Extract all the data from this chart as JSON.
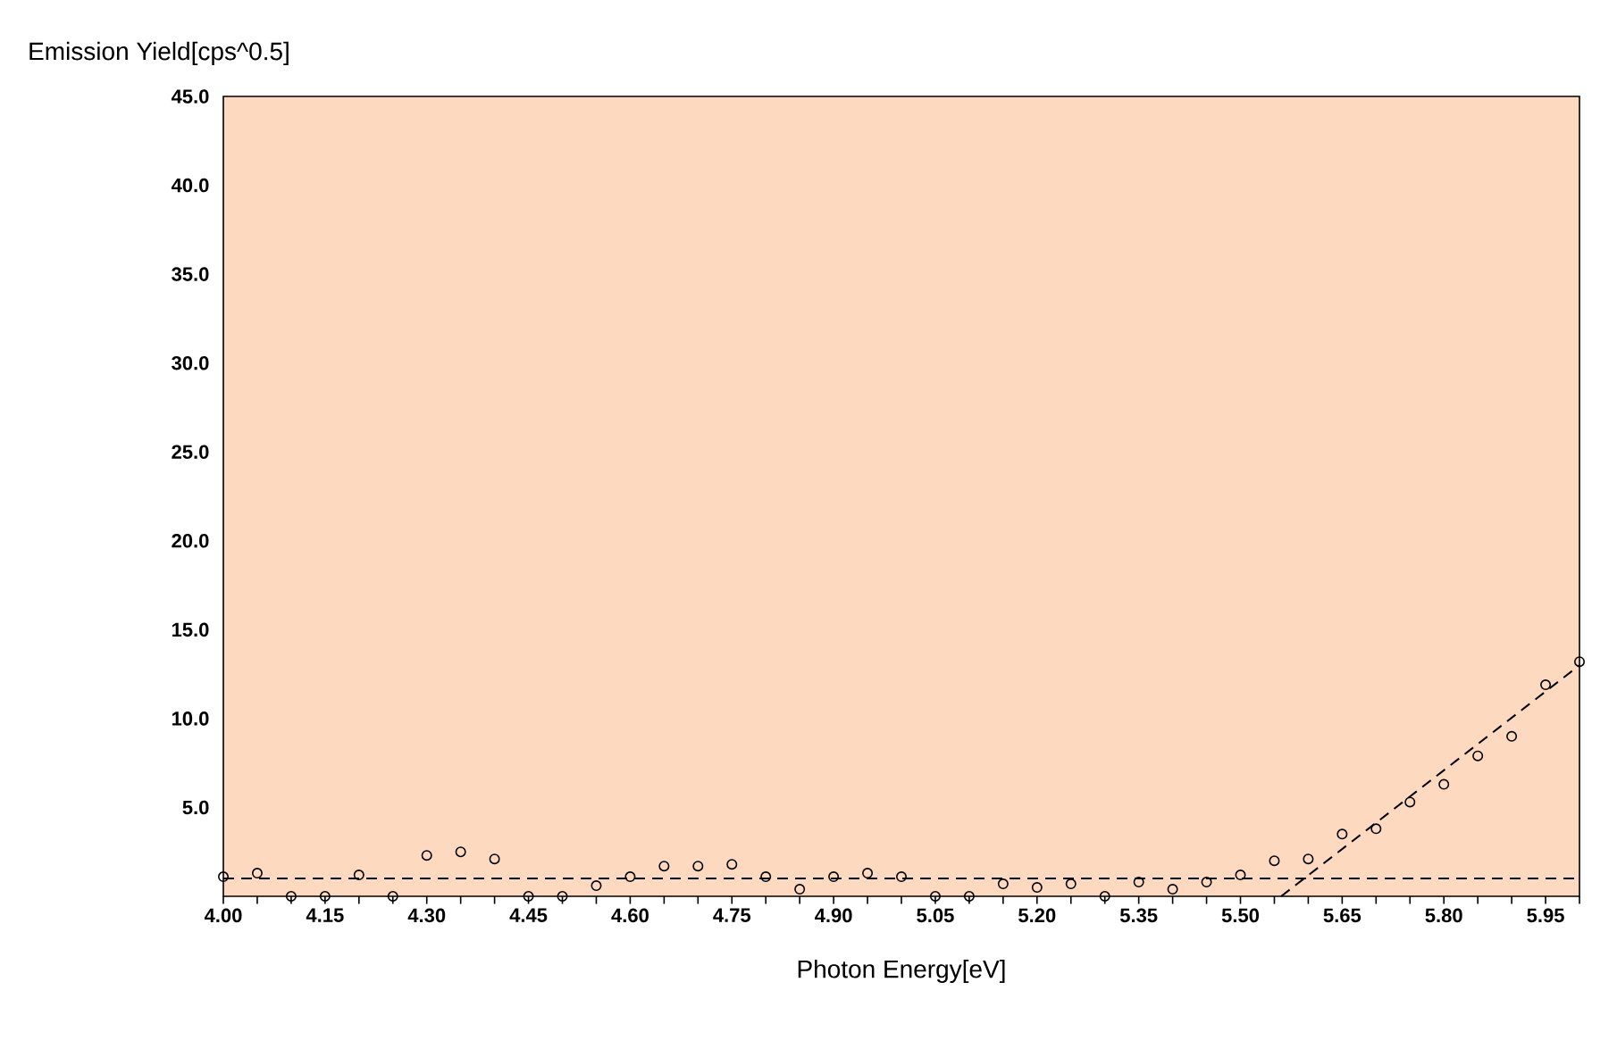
{
  "chart_data": {
    "type": "scatter",
    "xlabel": "Photon Energy[eV]",
    "ylabel": "Emission Yield[cps^0.5]",
    "xlim": [
      4.0,
      6.0
    ],
    "ylim": [
      0,
      45
    ],
    "xticks": [
      {
        "value": 4.0,
        "label": "4.00"
      },
      {
        "value": 4.05,
        "label": null
      },
      {
        "value": 4.1,
        "label": null
      },
      {
        "value": 4.15,
        "label": "4.15"
      },
      {
        "value": 4.2,
        "label": null
      },
      {
        "value": 4.25,
        "label": null
      },
      {
        "value": 4.3,
        "label": "4.30"
      },
      {
        "value": 4.35,
        "label": null
      },
      {
        "value": 4.4,
        "label": null
      },
      {
        "value": 4.45,
        "label": "4.45"
      },
      {
        "value": 4.5,
        "label": null
      },
      {
        "value": 4.55,
        "label": null
      },
      {
        "value": 4.6,
        "label": "4.60"
      },
      {
        "value": 4.65,
        "label": null
      },
      {
        "value": 4.7,
        "label": null
      },
      {
        "value": 4.75,
        "label": "4.75"
      },
      {
        "value": 4.8,
        "label": null
      },
      {
        "value": 4.85,
        "label": null
      },
      {
        "value": 4.9,
        "label": "4.90"
      },
      {
        "value": 4.95,
        "label": null
      },
      {
        "value": 5.0,
        "label": null
      },
      {
        "value": 5.05,
        "label": "5.05"
      },
      {
        "value": 5.1,
        "label": null
      },
      {
        "value": 5.15,
        "label": null
      },
      {
        "value": 5.2,
        "label": "5.20"
      },
      {
        "value": 5.25,
        "label": null
      },
      {
        "value": 5.3,
        "label": null
      },
      {
        "value": 5.35,
        "label": "5.35"
      },
      {
        "value": 5.4,
        "label": null
      },
      {
        "value": 5.45,
        "label": null
      },
      {
        "value": 5.5,
        "label": "5.50"
      },
      {
        "value": 5.55,
        "label": null
      },
      {
        "value": 5.6,
        "label": null
      },
      {
        "value": 5.65,
        "label": "5.65"
      },
      {
        "value": 5.7,
        "label": null
      },
      {
        "value": 5.75,
        "label": null
      },
      {
        "value": 5.8,
        "label": "5.80"
      },
      {
        "value": 5.85,
        "label": null
      },
      {
        "value": 5.9,
        "label": null
      },
      {
        "value": 5.95,
        "label": "5.95"
      },
      {
        "value": 6.0,
        "label": null
      }
    ],
    "yticks": [
      {
        "value": 5,
        "label": "5.0"
      },
      {
        "value": 10,
        "label": "10.0"
      },
      {
        "value": 15,
        "label": "15.0"
      },
      {
        "value": 20,
        "label": "20.0"
      },
      {
        "value": 25,
        "label": "25.0"
      },
      {
        "value": 30,
        "label": "30.0"
      },
      {
        "value": 35,
        "label": "35.0"
      },
      {
        "value": 40,
        "label": "40.0"
      },
      {
        "value": 45,
        "label": "45.0"
      }
    ],
    "series": [
      {
        "marker": "circle",
        "color": "#000000",
        "x": [
          4.0,
          4.05,
          4.1,
          4.15,
          4.2,
          4.25,
          4.3,
          4.35,
          4.4,
          4.45,
          4.5,
          4.55,
          4.6,
          4.65,
          4.7,
          4.75,
          4.8,
          4.85,
          4.9,
          4.95,
          5.0,
          5.05,
          5.1,
          5.15,
          5.2,
          5.25,
          5.3,
          5.35,
          5.4,
          5.45,
          5.5,
          5.55,
          5.6,
          5.65,
          5.7,
          5.75,
          5.8,
          5.85,
          5.9,
          5.95,
          6.0
        ],
        "values": [
          1.1,
          1.3,
          0.0,
          0.0,
          1.2,
          0.0,
          2.3,
          2.5,
          2.1,
          0.0,
          0.0,
          0.6,
          1.1,
          1.7,
          1.7,
          1.8,
          1.1,
          0.4,
          1.1,
          1.3,
          1.1,
          0.0,
          0.0,
          0.7,
          0.5,
          0.7,
          0.0,
          0.8,
          0.4,
          0.8,
          1.2,
          2.0,
          2.1,
          3.5,
          3.8,
          5.3,
          6.3,
          7.9,
          9.0,
          11.9,
          13.2
        ]
      },
      {
        "type": "line",
        "line_style": "dashed",
        "color": "#000000",
        "x": [
          4.0,
          6.0
        ],
        "values": [
          1.0,
          1.0
        ]
      },
      {
        "type": "line",
        "line_style": "dashed",
        "color": "#000000",
        "x": [
          5.56,
          6.0
        ],
        "values": [
          0.0,
          13.0
        ]
      }
    ]
  }
}
